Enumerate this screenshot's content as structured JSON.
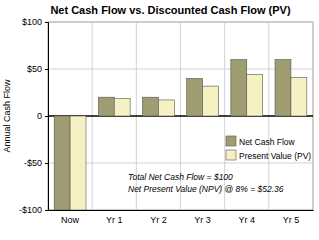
{
  "chart_data": {
    "type": "bar",
    "title": "Net Cash Flow vs. Discounted Cash Flow (PV)",
    "y_label": "Annual Cash Flow",
    "categories": [
      "Now",
      "Yr 1",
      "Yr 2",
      "Yr 3",
      "Yr 4",
      "Yr 5"
    ],
    "series": [
      {
        "name": "Net Cash Flow",
        "color": "#9e9d72",
        "values": [
          -100,
          20,
          20,
          40,
          60,
          60
        ]
      },
      {
        "name": "Present Value (PV)",
        "color": "#f6f1c3",
        "values": [
          -100,
          18.5,
          17.1,
          31.8,
          44.1,
          40.8
        ]
      }
    ],
    "ylim": [
      -100,
      100
    ],
    "yticks": [
      {
        "value": -100,
        "label": "-$100"
      },
      {
        "value": -50,
        "label": "-$50"
      },
      0,
      {
        "value": 50,
        "label": "$50"
      },
      {
        "value": 100,
        "label": "$100"
      }
    ],
    "grid": true,
    "legend": "lower-right",
    "annotations": [
      "Total Net Cash Flow = $100",
      "Net Present Value (NPV) @ 8% = $52.36"
    ]
  }
}
